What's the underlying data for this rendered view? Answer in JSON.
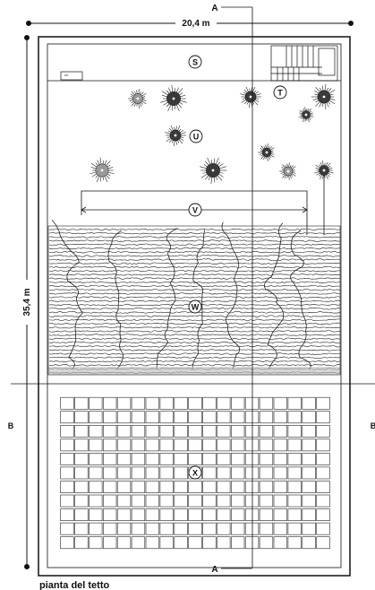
{
  "dimensions": {
    "width_label": "20,4 m",
    "height_label": "35,4 m"
  },
  "section_marks": {
    "a_top": "A",
    "a_bottom": "A",
    "b_left": "B",
    "b_right": "B"
  },
  "zones": {
    "s": "S",
    "t": "T",
    "u": "U",
    "v": "V",
    "w": "W",
    "x": "X"
  },
  "caption": "pianta del tetto",
  "grid": {
    "rows": 11,
    "cols": 19
  },
  "colors": {
    "ink": "#1a1a1a",
    "hedge": "#333333"
  }
}
